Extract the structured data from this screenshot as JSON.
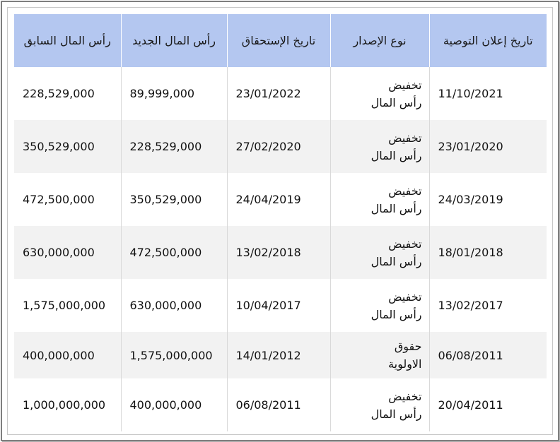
{
  "table": {
    "headers": {
      "announcement_date": "تاريخ إعلان التوصية",
      "issue_type": "نوع الإصدار",
      "due_date": "تاريخ الإستحقاق",
      "new_capital": "رأس المال الجديد",
      "previous_capital": "رأس المال السابق"
    },
    "rows": [
      {
        "announcement_date": "11/10/2021",
        "issue_type": "تخفيض رأس المال",
        "due_date": "23/01/2022",
        "new_capital": "89,999,000",
        "previous_capital": "228,529,000"
      },
      {
        "announcement_date": "23/01/2020",
        "issue_type": "تخفيض رأس المال",
        "due_date": "27/02/2020",
        "new_capital": "228,529,000",
        "previous_capital": "350,529,000"
      },
      {
        "announcement_date": "24/03/2019",
        "issue_type": "تخفيض رأس المال",
        "due_date": "24/04/2019",
        "new_capital": "350,529,000",
        "previous_capital": "472,500,000"
      },
      {
        "announcement_date": "18/01/2018",
        "issue_type": "تخفيض رأس المال",
        "due_date": "13/02/2018",
        "new_capital": "472,500,000",
        "previous_capital": "630,000,000"
      },
      {
        "announcement_date": "13/02/2017",
        "issue_type": "تخفيض رأس المال",
        "due_date": "10/04/2017",
        "new_capital": "630,000,000",
        "previous_capital": "1,575,000,000"
      },
      {
        "announcement_date": "06/08/2011",
        "issue_type": "حقوق الاولوية",
        "due_date": "14/01/2012",
        "new_capital": "1,575,000,000",
        "previous_capital": "400,000,000"
      },
      {
        "announcement_date": "20/04/2011",
        "issue_type": "تخفيض رأس المال",
        "due_date": "06/08/2011",
        "new_capital": "400,000,000",
        "previous_capital": "1,000,000,000"
      }
    ]
  },
  "colors": {
    "header_bg": "#b4c7f0",
    "stripe_bg": "#f2f2f2"
  }
}
